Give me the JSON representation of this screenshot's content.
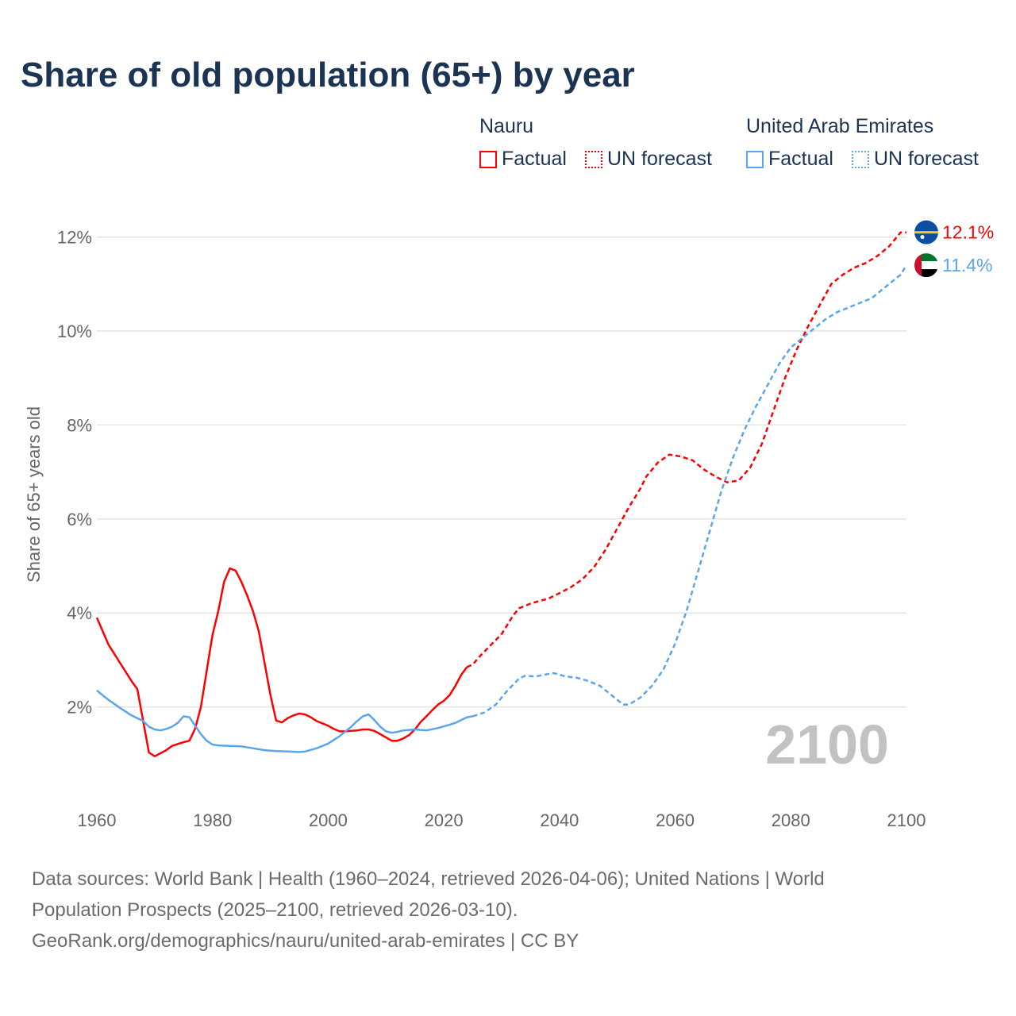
{
  "title": "Share of old population (65+) by year",
  "legend": {
    "groups": [
      {
        "name": "Nauru",
        "color": "#ff0000",
        "factual": "Factual",
        "forecast": "UN forecast"
      },
      {
        "name": "United Arab Emirates",
        "color": "#5aa5ec",
        "factual": "Factual",
        "forecast": "UN forecast"
      }
    ]
  },
  "footer": {
    "line1": "Data sources: World Bank | Health (1960–2024, retrieved 2026-04-06); United Nations | World",
    "line2": "Population Prospects (2025–2100, retrieved 2026-03-10).",
    "line3": "GeoRank.org/demographics/nauru/united-arab-emirates | CC BY"
  },
  "chart_data": {
    "type": "line",
    "title": "Share of old population (65+) by year",
    "xlabel": "",
    "ylabel": "Share of 65+ years old",
    "xlim": [
      1960,
      2100
    ],
    "ylim": [
      0,
      12.5
    ],
    "x_ticks": [
      1960,
      1980,
      2000,
      2020,
      2040,
      2060,
      2080,
      2100
    ],
    "y_ticks": [
      {
        "v": 2,
        "label": "2%"
      },
      {
        "v": 4,
        "label": "4%"
      },
      {
        "v": 6,
        "label": "6%"
      },
      {
        "v": 8,
        "label": "8%"
      },
      {
        "v": 10,
        "label": "10%"
      },
      {
        "v": 12,
        "label": "12%"
      }
    ],
    "year_label": "2100",
    "series": [
      {
        "name": "Nauru",
        "color": "#ff0000",
        "end_label": "12.1%",
        "factual": [
          [
            1960,
            3.9
          ],
          [
            1962,
            3.33
          ],
          [
            1964,
            2.94
          ],
          [
            1966,
            2.55
          ],
          [
            1967,
            2.38
          ],
          [
            1969,
            1.03
          ],
          [
            1970,
            0.95
          ],
          [
            1972,
            1.08
          ],
          [
            1973,
            1.17
          ],
          [
            1975,
            1.25
          ],
          [
            1976,
            1.28
          ],
          [
            1977,
            1.54
          ],
          [
            1978,
            2.0
          ],
          [
            1979,
            2.77
          ],
          [
            1980,
            3.53
          ],
          [
            1981,
            4.04
          ],
          [
            1982,
            4.66
          ],
          [
            1983,
            4.95
          ],
          [
            1984,
            4.9
          ],
          [
            1985,
            4.66
          ],
          [
            1986,
            4.37
          ],
          [
            1987,
            4.04
          ],
          [
            1988,
            3.61
          ],
          [
            1989,
            2.94
          ],
          [
            1990,
            2.26
          ],
          [
            1991,
            1.71
          ],
          [
            1992,
            1.67
          ],
          [
            1993,
            1.76
          ],
          [
            1994,
            1.82
          ],
          [
            1995,
            1.86
          ],
          [
            1996,
            1.84
          ],
          [
            1997,
            1.78
          ],
          [
            1998,
            1.7
          ],
          [
            1999,
            1.65
          ],
          [
            2000,
            1.6
          ],
          [
            2001,
            1.53
          ],
          [
            2002,
            1.48
          ],
          [
            2003,
            1.48
          ],
          [
            2004,
            1.49
          ],
          [
            2005,
            1.5
          ],
          [
            2006,
            1.52
          ],
          [
            2007,
            1.52
          ],
          [
            2008,
            1.49
          ],
          [
            2009,
            1.42
          ],
          [
            2010,
            1.35
          ],
          [
            2011,
            1.28
          ],
          [
            2012,
            1.28
          ],
          [
            2013,
            1.33
          ],
          [
            2014,
            1.4
          ],
          [
            2015,
            1.52
          ],
          [
            2016,
            1.68
          ],
          [
            2017,
            1.8
          ],
          [
            2018,
            1.93
          ],
          [
            2019,
            2.05
          ],
          [
            2020,
            2.13
          ],
          [
            2021,
            2.25
          ],
          [
            2022,
            2.45
          ],
          [
            2023,
            2.68
          ],
          [
            2024,
            2.85
          ]
        ],
        "forecast": [
          [
            2024,
            2.85
          ],
          [
            2025,
            2.9
          ],
          [
            2026,
            3.05
          ],
          [
            2028,
            3.3
          ],
          [
            2030,
            3.55
          ],
          [
            2032,
            3.95
          ],
          [
            2033,
            4.1
          ],
          [
            2035,
            4.2
          ],
          [
            2037,
            4.27
          ],
          [
            2038,
            4.3
          ],
          [
            2040,
            4.42
          ],
          [
            2042,
            4.55
          ],
          [
            2044,
            4.72
          ],
          [
            2046,
            4.98
          ],
          [
            2048,
            5.35
          ],
          [
            2050,
            5.8
          ],
          [
            2052,
            6.25
          ],
          [
            2054,
            6.65
          ],
          [
            2055,
            6.9
          ],
          [
            2057,
            7.2
          ],
          [
            2059,
            7.37
          ],
          [
            2061,
            7.33
          ],
          [
            2063,
            7.25
          ],
          [
            2065,
            7.05
          ],
          [
            2067,
            6.9
          ],
          [
            2069,
            6.78
          ],
          [
            2071,
            6.82
          ],
          [
            2073,
            7.1
          ],
          [
            2075,
            7.6
          ],
          [
            2077,
            8.3
          ],
          [
            2079,
            9.0
          ],
          [
            2081,
            9.6
          ],
          [
            2083,
            10.1
          ],
          [
            2085,
            10.55
          ],
          [
            2087,
            11.0
          ],
          [
            2089,
            11.2
          ],
          [
            2091,
            11.35
          ],
          [
            2093,
            11.45
          ],
          [
            2095,
            11.6
          ],
          [
            2097,
            11.8
          ],
          [
            2099,
            12.1
          ],
          [
            2100,
            12.1
          ]
        ]
      },
      {
        "name": "United Arab Emirates",
        "color": "#5aa5ec",
        "end_label": "11.4%",
        "factual": [
          [
            1960,
            2.35
          ],
          [
            1962,
            2.15
          ],
          [
            1964,
            1.98
          ],
          [
            1966,
            1.82
          ],
          [
            1968,
            1.7
          ],
          [
            1969,
            1.58
          ],
          [
            1970,
            1.52
          ],
          [
            1971,
            1.5
          ],
          [
            1972,
            1.53
          ],
          [
            1973,
            1.58
          ],
          [
            1974,
            1.66
          ],
          [
            1975,
            1.8
          ],
          [
            1976,
            1.78
          ],
          [
            1977,
            1.6
          ],
          [
            1978,
            1.42
          ],
          [
            1979,
            1.28
          ],
          [
            1980,
            1.2
          ],
          [
            1981,
            1.18
          ],
          [
            1983,
            1.17
          ],
          [
            1985,
            1.16
          ],
          [
            1987,
            1.12
          ],
          [
            1989,
            1.08
          ],
          [
            1991,
            1.06
          ],
          [
            1993,
            1.05
          ],
          [
            1995,
            1.04
          ],
          [
            1996,
            1.05
          ],
          [
            1998,
            1.12
          ],
          [
            2000,
            1.22
          ],
          [
            2002,
            1.38
          ],
          [
            2004,
            1.58
          ],
          [
            2005,
            1.7
          ],
          [
            2006,
            1.8
          ],
          [
            2007,
            1.84
          ],
          [
            2008,
            1.72
          ],
          [
            2009,
            1.58
          ],
          [
            2010,
            1.48
          ],
          [
            2011,
            1.45
          ],
          [
            2012,
            1.47
          ],
          [
            2013,
            1.5
          ],
          [
            2015,
            1.52
          ],
          [
            2017,
            1.5
          ],
          [
            2019,
            1.55
          ],
          [
            2021,
            1.62
          ],
          [
            2022,
            1.66
          ],
          [
            2024,
            1.78
          ],
          [
            2025,
            1.8
          ]
        ],
        "forecast": [
          [
            2025,
            1.8
          ],
          [
            2027,
            1.88
          ],
          [
            2029,
            2.05
          ],
          [
            2031,
            2.35
          ],
          [
            2033,
            2.6
          ],
          [
            2034,
            2.66
          ],
          [
            2036,
            2.65
          ],
          [
            2038,
            2.7
          ],
          [
            2039,
            2.72
          ],
          [
            2041,
            2.65
          ],
          [
            2043,
            2.62
          ],
          [
            2045,
            2.55
          ],
          [
            2047,
            2.45
          ],
          [
            2049,
            2.25
          ],
          [
            2051,
            2.05
          ],
          [
            2052,
            2.05
          ],
          [
            2054,
            2.2
          ],
          [
            2056,
            2.45
          ],
          [
            2058,
            2.8
          ],
          [
            2060,
            3.35
          ],
          [
            2062,
            4.05
          ],
          [
            2064,
            4.9
          ],
          [
            2066,
            5.75
          ],
          [
            2068,
            6.6
          ],
          [
            2070,
            7.3
          ],
          [
            2072,
            7.9
          ],
          [
            2074,
            8.4
          ],
          [
            2076,
            8.85
          ],
          [
            2078,
            9.3
          ],
          [
            2080,
            9.65
          ],
          [
            2082,
            9.85
          ],
          [
            2084,
            10.05
          ],
          [
            2086,
            10.25
          ],
          [
            2088,
            10.4
          ],
          [
            2090,
            10.5
          ],
          [
            2092,
            10.6
          ],
          [
            2094,
            10.7
          ],
          [
            2096,
            10.9
          ],
          [
            2098,
            11.1
          ],
          [
            2099,
            11.2
          ],
          [
            2100,
            11.4
          ]
        ]
      }
    ]
  }
}
